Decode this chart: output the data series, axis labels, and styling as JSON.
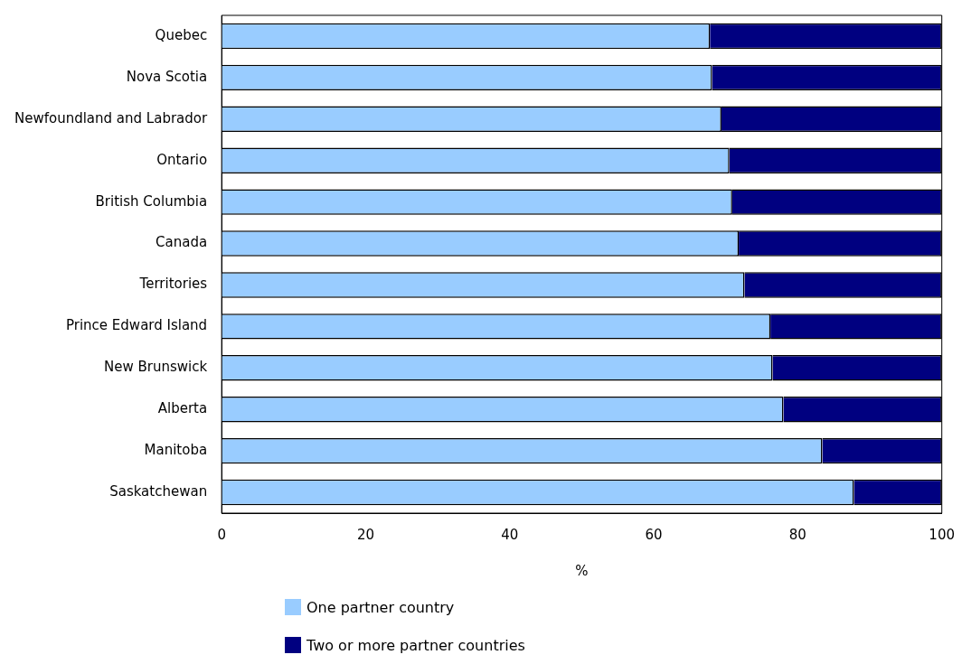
{
  "chart_data": {
    "type": "bar",
    "orientation": "horizontal",
    "stacked": true,
    "xlabel": "%",
    "categories": [
      "Quebec",
      "Nova Scotia",
      "Newfoundland and Labrador",
      "Ontario",
      "British Columbia",
      "Canada",
      "Territories",
      "Prince Edward Island",
      "New Brunswick",
      "Alberta",
      "Manitoba",
      "Saskatchewan"
    ],
    "series": [
      {
        "name": "One partner country",
        "color": "#99ccff",
        "values": [
          67.8,
          68.1,
          69.4,
          70.5,
          70.9,
          71.8,
          72.6,
          76.2,
          76.5,
          78.0,
          83.4,
          87.8
        ]
      },
      {
        "name": "Two or more partner countries",
        "color": "#000080",
        "values": [
          32.2,
          31.9,
          30.6,
          29.5,
          29.1,
          28.2,
          27.4,
          23.8,
          23.5,
          22.0,
          16.6,
          12.2
        ]
      }
    ],
    "xlim": [
      0,
      100
    ],
    "xticks": [
      0,
      20,
      40,
      60,
      80,
      100
    ],
    "grid": false,
    "legend": "bottom"
  }
}
